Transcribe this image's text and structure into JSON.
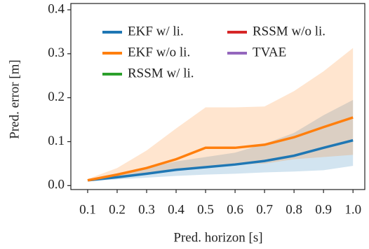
{
  "chart_data": {
    "type": "line",
    "xlabel": "Pred. horizon [s]",
    "ylabel": "Pred. error [m]",
    "x": [
      0.1,
      0.2,
      0.3,
      0.4,
      0.5,
      0.6,
      0.7,
      0.8,
      0.9,
      1.0
    ],
    "series": [
      {
        "name": "EKF w/ li.",
        "color": "#1f77b4",
        "values": [
          0.012,
          0.019,
          0.027,
          0.036,
          0.042,
          0.048,
          0.056,
          0.068,
          0.086,
          0.103
        ],
        "lower": [
          0.01,
          0.014,
          0.018,
          0.022,
          0.025,
          0.027,
          0.03,
          0.032,
          0.035,
          0.045
        ],
        "upper": [
          0.014,
          0.024,
          0.04,
          0.055,
          0.065,
          0.075,
          0.095,
          0.12,
          0.16,
          0.195
        ]
      },
      {
        "name": "EKF w/o li.",
        "color": "#ff7f0e",
        "values": [
          0.012,
          0.025,
          0.04,
          0.06,
          0.086,
          0.086,
          0.093,
          0.11,
          0.133,
          0.155
        ],
        "lower": [
          0.01,
          0.02,
          0.028,
          0.035,
          0.045,
          0.048,
          0.05,
          0.06,
          0.065,
          0.07
        ],
        "upper": [
          0.015,
          0.04,
          0.08,
          0.13,
          0.178,
          0.178,
          0.18,
          0.215,
          0.26,
          0.313
        ]
      },
      {
        "name": "RSSM w/ li.",
        "color": "#2ca02c",
        "values": [
          null,
          null,
          null,
          null,
          null,
          null,
          null,
          null,
          null,
          null
        ]
      },
      {
        "name": "RSSM w/o li.",
        "color": "#d62728",
        "values": [
          null,
          null,
          null,
          null,
          null,
          null,
          null,
          null,
          null,
          null
        ]
      },
      {
        "name": "TVAE",
        "color": "#9467bd",
        "values": [
          null,
          null,
          null,
          null,
          null,
          null,
          null,
          null,
          null,
          null
        ]
      }
    ],
    "xlim": [
      0.043,
      1.04
    ],
    "xticks": [
      0.1,
      0.2,
      0.3,
      0.4,
      0.5,
      0.6,
      0.7,
      0.8,
      0.9,
      {
        "value": 1,
        "label": "1.0"
      }
    ],
    "ylim": [
      -0.009,
      0.4
    ],
    "yticks": [
      {
        "value": 0,
        "label": "0.0"
      },
      0.1,
      0.2,
      0.3,
      0.4
    ],
    "band_opacity": 0.2,
    "legend": "upper left"
  }
}
